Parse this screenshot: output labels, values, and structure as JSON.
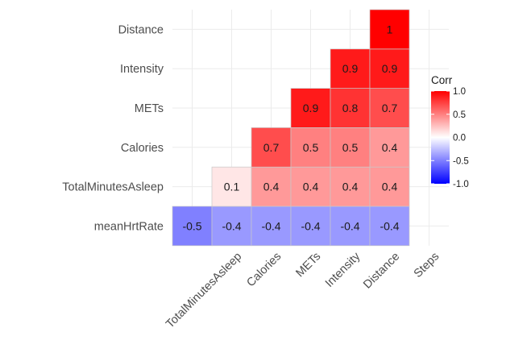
{
  "chart_data": {
    "type": "heatmap",
    "title": "",
    "xlabel": "",
    "ylabel": "",
    "x_categories": [
      "meanHrtRate",
      "TotalMinutesAsleep",
      "Calories",
      "METs",
      "Intensity",
      "Distance",
      "Steps"
    ],
    "x_tick_labels": [
      "TotalMinutesAsleep",
      "Calories",
      "METs",
      "Intensity",
      "Distance",
      "Steps"
    ],
    "y_categories": [
      "meanHrtRate",
      "TotalMinutesAsleep",
      "Calories",
      "METs",
      "Intensity",
      "Distance"
    ],
    "cells": [
      {
        "x": "meanHrtRate",
        "y": "meanHrtRate",
        "value": -0.5,
        "label": "-0.5"
      },
      {
        "x": "TotalMinutesAsleep",
        "y": "meanHrtRate",
        "value": -0.4,
        "label": "-0.4"
      },
      {
        "x": "Calories",
        "y": "meanHrtRate",
        "value": -0.4,
        "label": "-0.4"
      },
      {
        "x": "METs",
        "y": "meanHrtRate",
        "value": -0.4,
        "label": "-0.4"
      },
      {
        "x": "Intensity",
        "y": "meanHrtRate",
        "value": -0.4,
        "label": "-0.4"
      },
      {
        "x": "Distance",
        "y": "meanHrtRate",
        "value": -0.4,
        "label": "-0.4"
      },
      {
        "x": "TotalMinutesAsleep",
        "y": "TotalMinutesAsleep",
        "value": 0.1,
        "label": "0.1"
      },
      {
        "x": "Calories",
        "y": "TotalMinutesAsleep",
        "value": 0.4,
        "label": "0.4"
      },
      {
        "x": "METs",
        "y": "TotalMinutesAsleep",
        "value": 0.4,
        "label": "0.4"
      },
      {
        "x": "Intensity",
        "y": "TotalMinutesAsleep",
        "value": 0.4,
        "label": "0.4"
      },
      {
        "x": "Distance",
        "y": "TotalMinutesAsleep",
        "value": 0.4,
        "label": "0.4"
      },
      {
        "x": "Calories",
        "y": "Calories",
        "value": 0.7,
        "label": "0.7"
      },
      {
        "x": "METs",
        "y": "Calories",
        "value": 0.5,
        "label": "0.5"
      },
      {
        "x": "Intensity",
        "y": "Calories",
        "value": 0.5,
        "label": "0.5"
      },
      {
        "x": "Distance",
        "y": "Calories",
        "value": 0.4,
        "label": "0.4"
      },
      {
        "x": "METs",
        "y": "METs",
        "value": 0.9,
        "label": "0.9"
      },
      {
        "x": "Intensity",
        "y": "METs",
        "value": 0.8,
        "label": "0.8"
      },
      {
        "x": "Distance",
        "y": "METs",
        "value": 0.7,
        "label": "0.7"
      },
      {
        "x": "Intensity",
        "y": "Intensity",
        "value": 0.9,
        "label": "0.9"
      },
      {
        "x": "Distance",
        "y": "Intensity",
        "value": 0.9,
        "label": "0.9"
      },
      {
        "x": "Distance",
        "y": "Distance",
        "value": 1.0,
        "label": "1"
      }
    ],
    "legend": {
      "title": "Corr",
      "position": "right",
      "ticks": [
        "1.0",
        "0.5",
        "0.0",
        "-0.5",
        "-1.0"
      ],
      "tick_values": [
        1.0,
        0.5,
        0.0,
        -0.5,
        -1.0
      ],
      "range": [
        -1,
        1
      ]
    },
    "colors": {
      "low": "#0000FF",
      "mid": "#FFFFFF",
      "high": "#FF0000",
      "grid": "#ebebeb",
      "cell_border": "#c8c8c8"
    },
    "grid": true
  }
}
